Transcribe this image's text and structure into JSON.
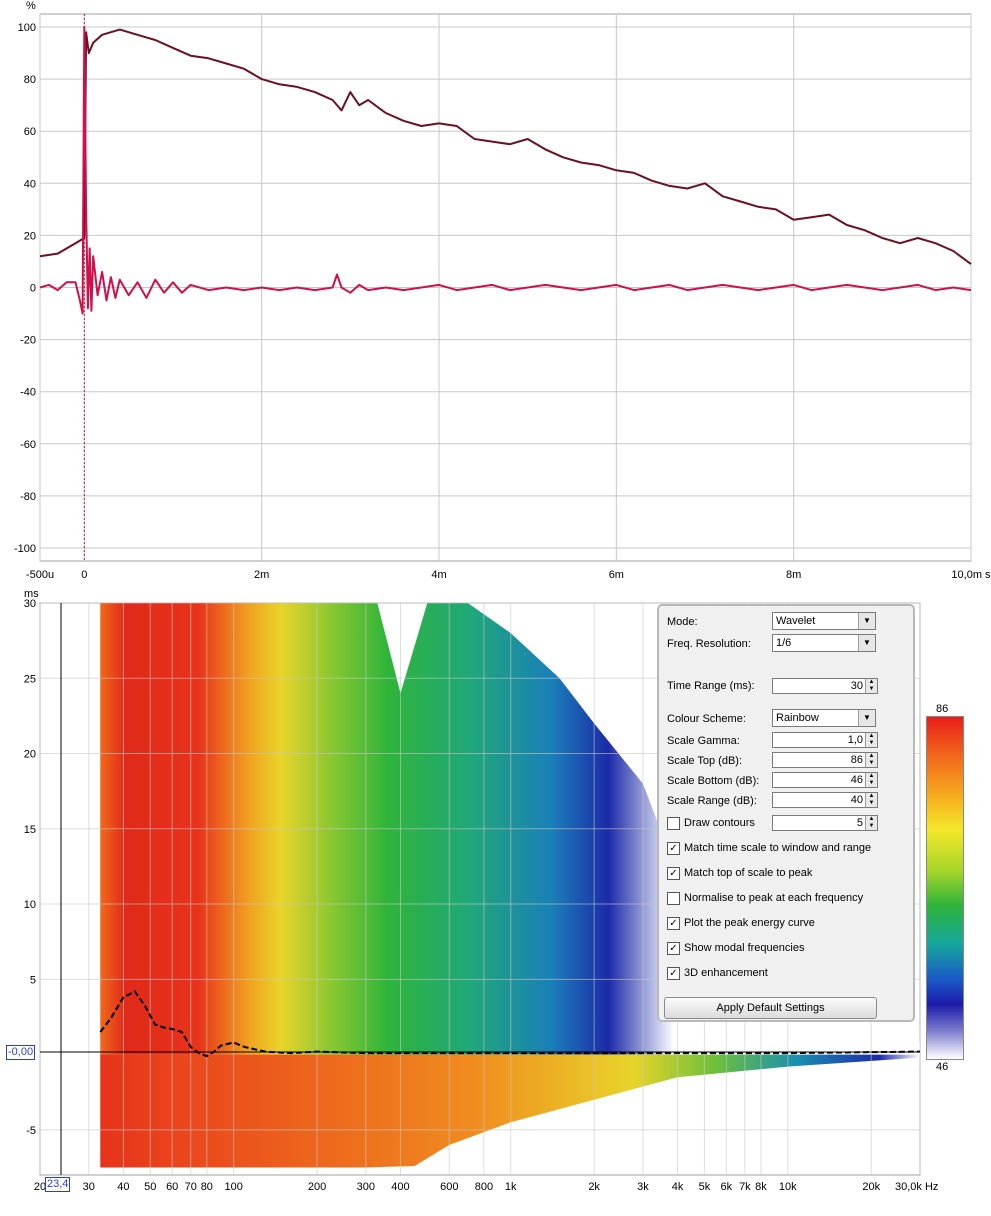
{
  "chart_data": [
    {
      "type": "line",
      "ylabel": "%",
      "xlim": [
        -0.5,
        10.0
      ],
      "ylim": [
        -105,
        105
      ],
      "y_ticks": [
        "100",
        "80",
        "60",
        "40",
        "20",
        "0",
        "-20",
        "-40",
        "-60",
        "-80",
        "-100"
      ],
      "y_tick_values": [
        100,
        80,
        60,
        40,
        20,
        0,
        -20,
        -40,
        -60,
        -80,
        -100
      ],
      "x_ticks": [
        "-500u",
        "0",
        "2m",
        "4m",
        "6m",
        "8m",
        "10,0m s"
      ],
      "x_tick_values": [
        -0.5,
        0,
        2,
        4,
        6,
        8,
        10
      ],
      "grid": true,
      "marker_x": 0.0,
      "series": [
        {
          "color": "#6b0f24",
          "x": [
            -0.5,
            -0.3,
            -0.1,
            0.0,
            0.02,
            0.05,
            0.1,
            0.2,
            0.3,
            0.4,
            0.5,
            0.6,
            0.7,
            0.8,
            1.0,
            1.2,
            1.4,
            1.6,
            1.8,
            2.0,
            2.2,
            2.4,
            2.6,
            2.8,
            2.9,
            3.0,
            3.1,
            3.2,
            3.4,
            3.6,
            3.8,
            4.0,
            4.2,
            4.4,
            4.6,
            4.8,
            5.0,
            5.2,
            5.4,
            5.6,
            5.8,
            6.0,
            6.2,
            6.4,
            6.6,
            6.8,
            7.0,
            7.2,
            7.4,
            7.6,
            7.8,
            8.0,
            8.2,
            8.4,
            8.6,
            8.8,
            9.0,
            9.2,
            9.4,
            9.6,
            9.8,
            10.0
          ],
          "y": [
            12,
            13,
            17,
            19,
            98,
            90,
            94,
            97,
            98,
            99,
            98,
            97,
            96,
            95,
            92,
            89,
            88,
            86,
            84,
            80,
            78,
            77,
            75,
            72,
            68,
            75,
            70,
            72,
            67,
            64,
            62,
            63,
            62,
            57,
            56,
            55,
            57,
            53,
            50,
            48,
            47,
            45,
            44,
            41,
            39,
            38,
            40,
            35,
            33,
            31,
            30,
            26,
            27,
            28,
            24,
            22,
            19,
            17,
            19,
            17,
            14,
            9
          ]
        },
        {
          "color": "#d0104a",
          "x": [
            -0.5,
            -0.4,
            -0.3,
            -0.2,
            -0.1,
            -0.05,
            -0.02,
            0.0,
            0.02,
            0.04,
            0.06,
            0.08,
            0.1,
            0.15,
            0.2,
            0.25,
            0.3,
            0.35,
            0.4,
            0.5,
            0.6,
            0.7,
            0.8,
            0.9,
            1.0,
            1.1,
            1.2,
            1.4,
            1.6,
            1.8,
            2.0,
            2.2,
            2.4,
            2.6,
            2.8,
            2.85,
            2.9,
            3.0,
            3.1,
            3.2,
            3.4,
            3.6,
            3.8,
            4.0,
            4.2,
            4.4,
            4.6,
            4.8,
            5.0,
            5.2,
            5.4,
            5.6,
            5.8,
            6.0,
            6.2,
            6.4,
            6.6,
            6.8,
            7.0,
            7.2,
            7.4,
            7.6,
            7.8,
            8.0,
            8.2,
            8.4,
            8.6,
            8.8,
            9.0,
            9.2,
            9.4,
            9.6,
            9.8,
            10.0
          ],
          "y": [
            0,
            1,
            -1,
            2,
            2,
            -5,
            -10,
            100,
            30,
            -8,
            15,
            -9,
            12,
            -3,
            6,
            -5,
            4,
            -4,
            3,
            -3,
            2,
            -4,
            3,
            -2,
            2,
            -2,
            1,
            -1,
            0,
            -1,
            0,
            -1,
            0,
            -1,
            0,
            5,
            0,
            -2,
            1,
            -1,
            0,
            -1,
            0,
            1,
            -1,
            0,
            1,
            -1,
            0,
            1,
            0,
            -1,
            0,
            1,
            -1,
            0,
            1,
            -1,
            0,
            1,
            0,
            -1,
            0,
            1,
            -1,
            0,
            1,
            0,
            -1,
            0,
            1,
            -1,
            0,
            -1
          ]
        }
      ]
    },
    {
      "type": "heatmap",
      "ylabel": "ms",
      "x_scale": "log",
      "xlim": [
        20,
        30000
      ],
      "ylim": [
        -8,
        30
      ],
      "x_ticks": [
        "20",
        "30",
        "40",
        "50",
        "60",
        "70",
        "80",
        "100",
        "200",
        "300",
        "400",
        "600",
        "800",
        "1k",
        "2k",
        "3k",
        "4k",
        "5k",
        "6k",
        "7k",
        "8k",
        "10k",
        "20k",
        "30,0k Hz"
      ],
      "x_tick_values": [
        20,
        30,
        40,
        50,
        60,
        70,
        80,
        100,
        200,
        300,
        400,
        600,
        800,
        1000,
        2000,
        3000,
        4000,
        5000,
        6000,
        7000,
        8000,
        10000,
        20000,
        30000
      ],
      "y_ticks": [
        "30",
        "25",
        "20",
        "15",
        "10",
        "5",
        "-5"
      ],
      "y_tick_values": [
        30,
        25,
        20,
        15,
        10,
        5,
        -5
      ],
      "cursor_freq": "23,4",
      "cursor_time": "-0,00",
      "colour_scale": {
        "top": "86",
        "bottom": "46"
      },
      "peak_energy_curve": {
        "freq": [
          33,
          36,
          40,
          44,
          48,
          52,
          56,
          60,
          65,
          70,
          75,
          80,
          85,
          90,
          100,
          110,
          130,
          160,
          200,
          300,
          500,
          1000,
          3000,
          10000,
          30000
        ],
        "time_ms": [
          1.5,
          2.4,
          3.8,
          4.2,
          3.2,
          2.0,
          1.8,
          1.7,
          1.5,
          0.5,
          0.1,
          -0.1,
          0.2,
          0.6,
          0.8,
          0.5,
          0.2,
          0.1,
          0.2,
          0.1,
          0.1,
          0.1,
          0.1,
          0.1,
          0.2
        ]
      }
    }
  ],
  "settings_panel": {
    "mode_label": "Mode:",
    "mode_value": "Wavelet",
    "freq_res_label": "Freq. Resolution:",
    "freq_res_value": "1/6",
    "time_range_label": "Time Range (ms):",
    "time_range_value": "30",
    "colour_scheme_label": "Colour Scheme:",
    "colour_scheme_value": "Rainbow",
    "scale_gamma_label": "Scale Gamma:",
    "scale_gamma_value": "1,0",
    "scale_top_label": "Scale Top (dB):",
    "scale_top_value": "86",
    "scale_bottom_label": "Scale Bottom (dB):",
    "scale_bottom_value": "46",
    "scale_range_label": "Scale Range (dB):",
    "scale_range_value": "40",
    "draw_contours_label": "Draw contours",
    "draw_contours_value": "5",
    "checks": [
      {
        "label": "Match time scale to window and range",
        "checked": true
      },
      {
        "label": "Match top of scale to peak",
        "checked": true
      },
      {
        "label": "Normalise to peak at each frequency",
        "checked": false
      },
      {
        "label": "Plot the peak energy curve",
        "checked": true
      },
      {
        "label": "Show modal frequencies",
        "checked": true
      },
      {
        "label": "3D enhancement",
        "checked": true
      }
    ],
    "draw_contours_checked": false,
    "apply_button": "Apply Default Settings"
  },
  "colors": {
    "envelope": "#6b0f24",
    "impulse": "#d0104a",
    "grid": "#c8c8c8",
    "marker": "#d0104a"
  }
}
